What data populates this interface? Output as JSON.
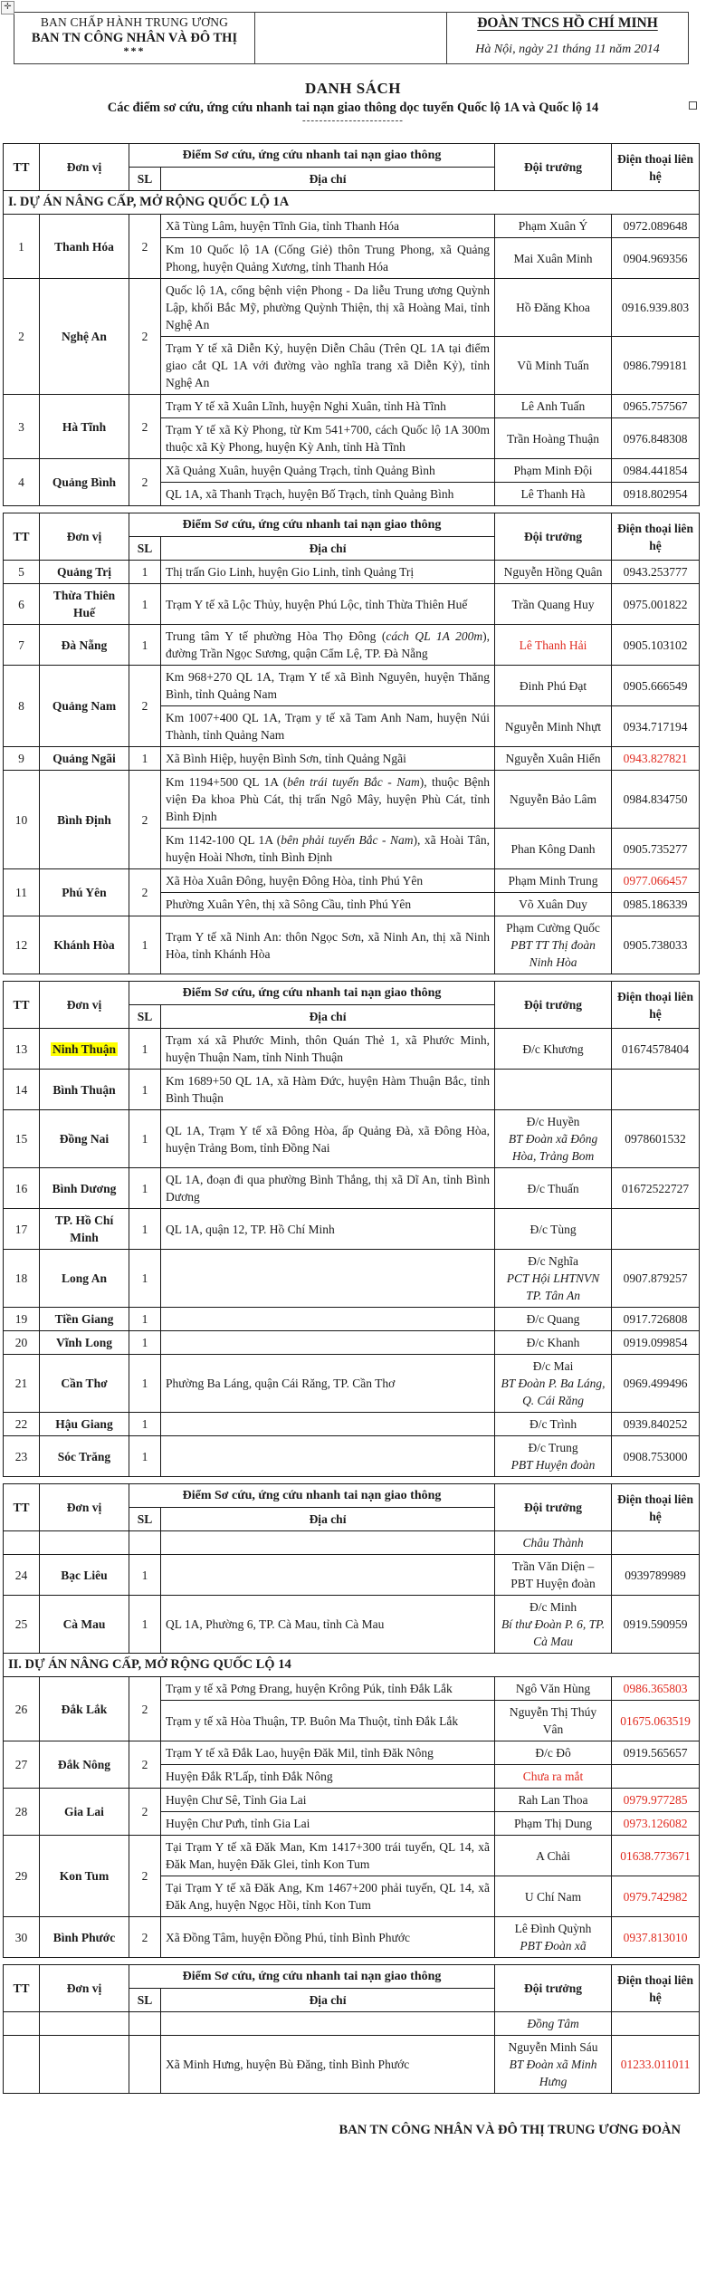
{
  "colors": {
    "red": "#e02a1f",
    "highlight": "#ffff00",
    "text": "#1b1b1b",
    "border": "#181818"
  },
  "letterhead": {
    "left_line1": "BAN CHẤP HÀNH TRUNG ƯƠNG",
    "left_line2": "BAN TN CÔNG NHÂN VÀ ĐÔ THỊ",
    "left_stars": "***",
    "right_org": "ĐOÀN TNCS HỒ CHÍ MINH",
    "right_date": "Hà Nội, ngày 21 tháng 11 năm 2014"
  },
  "title": "DANH SÁCH",
  "subtitle": "Các điểm sơ cứu, ứng cứu nhanh tai nạn giao thông dọc tuyến Quốc lộ 1A và Quốc lộ 14",
  "divider_dots": "------------------------",
  "table_header": {
    "tt": "TT",
    "unit": "Đơn vị",
    "group": "Điểm Sơ cứu, ứng cứu nhanh tai nạn giao thông",
    "sl": "SL",
    "address": "Địa chỉ",
    "leader": "Đội trưởng",
    "phone": "Điện thoại liên hệ"
  },
  "fragments": [
    {
      "rows": [
        {
          "type": "section",
          "label": "I. DỰ ÁN NÂNG CẤP, MỞ RỘNG QUỐC LỘ 1A"
        },
        {
          "type": "unit",
          "tt": "1",
          "unit": "Thanh Hóa",
          "sl": "2",
          "entries": [
            {
              "addr": "Xã Tùng Lâm, huyện Tĩnh Gia, tỉnh Thanh Hóa",
              "leader": [
                {
                  "t": "Phạm Xuân Ý"
                }
              ],
              "phone": "0972.089648"
            },
            {
              "addr": "Km 10 Quốc lộ 1A (Cống Giẻ) thôn Trung Phong, xã Quảng Phong, huyện Quảng Xương, tỉnh Thanh Hóa",
              "leader": [
                {
                  "t": "Mai Xuân Minh"
                }
              ],
              "phone": "0904.969356"
            }
          ]
        },
        {
          "type": "unit",
          "tt": "2",
          "unit": "Nghệ An",
          "sl": "2",
          "entries": [
            {
              "addr": "Quốc lộ 1A, cổng bệnh viện Phong - Da liễu Trung ương Quỳnh Lập, khối Bắc Mỹ, phường Quỳnh Thiện, thị xã Hoàng Mai, tỉnh Nghệ An",
              "leader": [
                {
                  "t": "Hồ Đăng Khoa"
                }
              ],
              "phone": "0916.939.803"
            },
            {
              "addr": "Trạm Y tế xã Diễn Kỷ, huyện Diễn Châu (Trên QL 1A tại điểm giao cắt QL 1A với đường vào nghĩa trang xã Diễn Kỷ), tỉnh Nghệ An",
              "leader": [
                {
                  "t": "Vũ Minh Tuấn"
                }
              ],
              "phone": "0986.799181"
            }
          ]
        },
        {
          "type": "unit",
          "tt": "3",
          "unit": "Hà Tĩnh",
          "sl": "2",
          "entries": [
            {
              "addr": "Trạm Y tế xã Xuân Lĩnh, huyện Nghi Xuân, tỉnh Hà Tĩnh",
              "leader": [
                {
                  "t": "Lê Anh Tuấn"
                }
              ],
              "phone": "0965.757567"
            },
            {
              "addr": "Trạm Y tế xã Kỳ Phong, từ Km 541+700, cách Quốc lộ 1A 300m thuộc xã Kỳ Phong, huyện Kỳ Anh, tỉnh Hà Tĩnh",
              "leader": [
                {
                  "t": "Trần Hoàng Thuận"
                }
              ],
              "phone": "0976.848308"
            }
          ]
        },
        {
          "type": "unit",
          "tt": "4",
          "unit": "Quảng Bình",
          "sl": "2",
          "entries": [
            {
              "addr": "Xã Quảng Xuân, huyện Quảng Trạch, tỉnh Quảng Bình",
              "leader": [
                {
                  "t": "Phạm Minh Đội"
                }
              ],
              "phone": "0984.441854"
            },
            {
              "addr": "QL 1A, xã Thanh Trạch, huyện Bố Trạch, tỉnh Quảng Bình",
              "leader": [
                {
                  "t": "Lê Thanh Hà"
                }
              ],
              "phone": "0918.802954"
            }
          ]
        }
      ]
    },
    {
      "rows": [
        {
          "type": "unit",
          "tt": "5",
          "unit": "Quảng Trị",
          "sl": "1",
          "entries": [
            {
              "addr": "Thị trấn Gio Linh, huyện Gio Linh, tỉnh Quảng Trị",
              "leader": [
                {
                  "t": "Nguyễn Hồng Quân"
                }
              ],
              "phone": "0943.253777"
            }
          ]
        },
        {
          "type": "unit",
          "tt": "6",
          "unit": "Thừa Thiên Huế",
          "sl": "1",
          "entries": [
            {
              "addr": "Trạm Y tế xã Lộc Thủy, huyện Phú Lộc, tỉnh Thừa Thiên Huế",
              "leader": [
                {
                  "t": "Trần Quang Huy"
                }
              ],
              "phone": "0975.001822"
            }
          ]
        },
        {
          "type": "unit",
          "tt": "7",
          "unit": "Đà Nẵng",
          "sl": "1",
          "entries": [
            {
              "addr": [
                {
                  "t": "Trung tâm Y tế phường Hòa Thọ Đông ("
                },
                {
                  "t": "cách QL 1A 200m",
                  "i": true
                },
                {
                  "t": "), đường Trần Ngọc Sương, quận Cẩm Lệ, TP. Đà Nẵng"
                }
              ],
              "leader": [
                {
                  "t": "Lê Thanh Hải",
                  "red": true
                }
              ],
              "phone": "0905.103102"
            }
          ]
        },
        {
          "type": "unit",
          "tt": "8",
          "unit": "Quảng Nam",
          "sl": "2",
          "entries": [
            {
              "addr": "Km 968+270 QL 1A, Trạm Y tế xã Bình Nguyên, huyện Thăng Bình, tỉnh Quảng Nam",
              "leader": [
                {
                  "t": "Đinh Phú Đạt"
                }
              ],
              "phone": "0905.666549"
            },
            {
              "addr": "Km 1007+400 QL 1A, Trạm y tế xã Tam Anh Nam, huyện Núi Thành, tỉnh Quảng Nam",
              "leader": [
                {
                  "t": "Nguyễn Minh Nhựt"
                }
              ],
              "phone": "0934.717194"
            }
          ]
        },
        {
          "type": "unit",
          "tt": "9",
          "unit": "Quảng Ngãi",
          "sl": "1",
          "entries": [
            {
              "addr": "Xã Bình Hiệp, huyện Bình Sơn, tỉnh Quảng Ngãi",
              "leader": [
                {
                  "t": "Nguyễn Xuân Hiển"
                }
              ],
              "phone": "0943.827821",
              "phoneRed": true
            }
          ]
        },
        {
          "type": "unit",
          "tt": "10",
          "unit": "Bình Định",
          "sl": "2",
          "entries": [
            {
              "addr": [
                {
                  "t": "Km 1194+500 QL 1A ("
                },
                {
                  "t": "bên trái tuyến Bắc - Nam",
                  "i": true
                },
                {
                  "t": "), thuộc Bệnh viện Đa khoa Phù Cát, thị trấn Ngô Mây, huyện Phù Cát, tỉnh Bình Định"
                }
              ],
              "leader": [
                {
                  "t": "Nguyễn Bảo Lâm"
                }
              ],
              "phone": "0984.834750"
            },
            {
              "addr": [
                {
                  "t": "Km 1142-100 QL 1A ("
                },
                {
                  "t": "bên phải tuyến Bắc - Nam",
                  "i": true
                },
                {
                  "t": "), xã Hoài Tân, huyện Hoài Nhơn, tỉnh Bình Định"
                }
              ],
              "leader": [
                {
                  "t": "Phan Kông Danh"
                }
              ],
              "phone": "0905.735277"
            }
          ]
        },
        {
          "type": "unit",
          "tt": "11",
          "unit": "Phú Yên",
          "sl": "2",
          "entries": [
            {
              "addr": "Xã Hòa Xuân Đông, huyện Đông Hòa, tỉnh Phú Yên",
              "leader": [
                {
                  "t": "Phạm Minh Trung"
                }
              ],
              "phone": "0977.066457",
              "phoneRed": true
            },
            {
              "addr": "Phường Xuân Yên, thị xã Sông Cầu, tỉnh Phú Yên",
              "leader": [
                {
                  "t": "Võ Xuân Duy"
                }
              ],
              "phone": "0985.186339"
            }
          ]
        },
        {
          "type": "unit",
          "tt": "12",
          "unit": "Khánh Hòa",
          "sl": "1",
          "entries": [
            {
              "addr": "Trạm Y tế xã Ninh An: thôn Ngọc Sơn, xã Ninh An, thị xã Ninh Hòa, tỉnh Khánh Hòa",
              "leader": [
                {
                  "t": "Phạm Cường Quốc"
                },
                {
                  "t": "PBT TT Thị đoàn Ninh Hòa",
                  "i": true
                }
              ],
              "phone": "0905.738033"
            }
          ]
        }
      ]
    },
    {
      "rows": [
        {
          "type": "unit",
          "tt": "13",
          "unit": "Ninh Thuận",
          "hl": true,
          "sl": "1",
          "entries": [
            {
              "addr": "Trạm xá xã Phước Minh, thôn Quán Thẻ 1, xã Phước Minh, huyện Thuận Nam, tỉnh Ninh Thuận",
              "leader": [
                {
                  "t": "Đ/c Khương"
                }
              ],
              "phone": "01674578404"
            }
          ]
        },
        {
          "type": "unit",
          "tt": "14",
          "unit": "Bình Thuận",
          "sl": "1",
          "entries": [
            {
              "addr": "Km 1689+50 QL 1A, xã Hàm Đức, huyện Hàm Thuận Bắc, tỉnh Bình Thuận",
              "leader": [],
              "phone": ""
            }
          ]
        },
        {
          "type": "unit",
          "tt": "15",
          "unit": "Đồng Nai",
          "sl": "1",
          "entries": [
            {
              "addr": "QL 1A, Trạm Y tế xã Đông Hòa, ấp Quảng Đà, xã Đông Hòa, huyện Trảng Bom, tỉnh Đồng Nai",
              "leader": [
                {
                  "t": "Đ/c Huyền"
                },
                {
                  "t": "BT Đoàn xã Đông Hòa, Trảng Bom",
                  "i": true
                }
              ],
              "phone": "0978601532"
            }
          ]
        },
        {
          "type": "unit",
          "tt": "16",
          "unit": "Bình Dương",
          "sl": "1",
          "entries": [
            {
              "addr": "QL 1A, đoạn đi qua phường Bình Thắng, thị xã Dĩ An, tỉnh Bình Dương",
              "leader": [
                {
                  "t": "Đ/c Thuấn"
                }
              ],
              "phone": "01672522727"
            }
          ]
        },
        {
          "type": "unit",
          "tt": "17",
          "unit": "TP. Hồ Chí Minh",
          "sl": "1",
          "entries": [
            {
              "addr": "QL 1A, quận 12, TP. Hồ Chí Minh",
              "leader": [
                {
                  "t": "Đ/c Tùng"
                }
              ],
              "phone": ""
            }
          ]
        },
        {
          "type": "unit",
          "tt": "18",
          "unit": "Long An",
          "sl": "1",
          "entries": [
            {
              "addr": "",
              "leader": [
                {
                  "t": "Đ/c Nghĩa"
                },
                {
                  "t": "PCT Hội LHTNVN TP. Tân An",
                  "i": true
                }
              ],
              "phone": "0907.879257"
            }
          ]
        },
        {
          "type": "unit",
          "tt": "19",
          "unit": "Tiền Giang",
          "sl": "1",
          "entries": [
            {
              "addr": "",
              "leader": [
                {
                  "t": "Đ/c Quang"
                }
              ],
              "phone": "0917.726808"
            }
          ]
        },
        {
          "type": "unit",
          "tt": "20",
          "unit": "Vĩnh Long",
          "sl": "1",
          "entries": [
            {
              "addr": "",
              "leader": [
                {
                  "t": "Đ/c Khanh"
                }
              ],
              "phone": "0919.099854"
            }
          ]
        },
        {
          "type": "unit",
          "tt": "21",
          "unit": "Cần Thơ",
          "sl": "1",
          "entries": [
            {
              "addr": "Phường Ba Láng, quận Cái Răng, TP. Cần Thơ",
              "leader": [
                {
                  "t": "Đ/c Mai"
                },
                {
                  "t": "BT Đoàn P. Ba Láng, Q. Cái Răng",
                  "i": true
                }
              ],
              "phone": "0969.499496"
            }
          ]
        },
        {
          "type": "unit",
          "tt": "22",
          "unit": "Hậu Giang",
          "sl": "1",
          "entries": [
            {
              "addr": "",
              "leader": [
                {
                  "t": "Đ/c Trình"
                }
              ],
              "phone": "0939.840252"
            }
          ]
        },
        {
          "type": "unit",
          "tt": "23",
          "unit": "Sóc Trăng",
          "sl": "1",
          "entries": [
            {
              "addr": "",
              "leader": [
                {
                  "t": "Đ/c Trung"
                },
                {
                  "t": "PBT Huyện đoàn",
                  "i": true
                }
              ],
              "phone": "0908.753000"
            }
          ]
        }
      ]
    },
    {
      "rows": [
        {
          "type": "unit",
          "tt": "",
          "unit": "",
          "sl": "",
          "thin": true,
          "entries": [
            {
              "addr": "",
              "leader": [
                {
                  "t": "Châu Thành",
                  "i": true
                }
              ],
              "phone": ""
            }
          ]
        },
        {
          "type": "unit",
          "tt": "24",
          "unit": "Bạc Liêu",
          "sl": "1",
          "entries": [
            {
              "addr": "",
              "leader": [
                {
                  "t": "Trần Văn Diện –"
                },
                {
                  "t": "PBT Huyện đoàn"
                }
              ],
              "phone": "0939789989"
            }
          ]
        },
        {
          "type": "unit",
          "tt": "25",
          "unit": "Cà Mau",
          "sl": "1",
          "entries": [
            {
              "addr": "QL 1A, Phường 6, TP. Cà Mau, tỉnh Cà Mau",
              "leader": [
                {
                  "t": "Đ/c Minh"
                },
                {
                  "t": "Bí thư Đoàn P. 6, TP. Cà Mau",
                  "i": true
                }
              ],
              "phone": "0919.590959"
            }
          ]
        },
        {
          "type": "section",
          "label": "II. DỰ ÁN NÂNG CẤP, MỞ RỘNG QUỐC LỘ 14"
        },
        {
          "type": "unit",
          "tt": "26",
          "unit": "Đắk Lắk",
          "sl": "2",
          "entries": [
            {
              "addr": "Trạm y tế xã Pơng Đrang, huyện Krông Púk, tỉnh Đắk Lắk",
              "leader": [
                {
                  "t": "Ngô Văn Hùng"
                }
              ],
              "phone": "0986.365803",
              "phoneRed": true
            },
            {
              "addr": "Trạm y tế xã Hòa Thuận, TP. Buôn Ma Thuột, tỉnh Đắk Lắk",
              "leader": [
                {
                  "t": "Nguyễn Thị Thúy Vân"
                }
              ],
              "phone": "01675.063519",
              "phoneRed": true
            }
          ]
        },
        {
          "type": "unit",
          "tt": "27",
          "unit": "Đắk Nông",
          "sl": "2",
          "entries": [
            {
              "addr": "Trạm Y tế xã Đắk Lao, huyện Đăk Mil, tỉnh Đăk Nông",
              "leader": [
                {
                  "t": "Đ/c Đô"
                }
              ],
              "phone": "0919.565657"
            },
            {
              "addr": "Huyện Đắk R'Lấp, tỉnh Đắk Nông",
              "leader": [
                {
                  "t": "Chưa ra mắt",
                  "red": true
                }
              ],
              "phone": ""
            }
          ]
        },
        {
          "type": "unit",
          "tt": "28",
          "unit": "Gia Lai",
          "sl": "2",
          "entries": [
            {
              "addr": "Huyện Chư Sê, Tỉnh Gia Lai",
              "leader": [
                {
                  "t": "Rah Lan Thoa"
                }
              ],
              "phone": "0979.977285",
              "phoneRed": true
            },
            {
              "addr": "Huyện Chư Pưh, tỉnh Gia Lai",
              "leader": [
                {
                  "t": "Phạm Thị Dung"
                }
              ],
              "phone": "0973.126082",
              "phoneRed": true
            }
          ]
        },
        {
          "type": "unit",
          "tt": "29",
          "unit": "Kon Tum",
          "sl": "2",
          "entries": [
            {
              "addr": "Tại Trạm Y tế xã Đăk Man, Km 1417+300 trái tuyến, QL 14, xã Đăk Man, huyện Đăk Glei, tỉnh Kon Tum",
              "leader": [
                {
                  "t": "A Chải"
                }
              ],
              "phone": "01638.773671",
              "phoneRed": true
            },
            {
              "addr": "Tại Trạm Y tế xã Đăk Ang, Km 1467+200 phải tuyến, QL 14, xã Đăk Ang, huyện Ngọc Hồi, tỉnh Kon Tum",
              "leader": [
                {
                  "t": "U Chí Nam"
                }
              ],
              "phone": "0979.742982",
              "phoneRed": true
            }
          ]
        },
        {
          "type": "unit",
          "tt": "30",
          "unit": "Bình Phước",
          "sl": "2",
          "entries": [
            {
              "addr": "Xã Đồng Tâm, huyện Đồng Phú, tỉnh Bình Phước",
              "leader": [
                {
                  "t": "Lê Đình Quỳnh"
                },
                {
                  "t": "PBT Đoàn xã",
                  "i": true
                }
              ],
              "phone": "0937.813010",
              "phoneRed": true
            }
          ]
        }
      ]
    },
    {
      "rows": [
        {
          "type": "unit",
          "tt": "",
          "unit": "",
          "sl": "",
          "thin": true,
          "entries": [
            {
              "addr": "",
              "leader": [
                {
                  "t": "Đồng Tâm",
                  "i": true
                }
              ],
              "phone": ""
            }
          ]
        },
        {
          "type": "unit",
          "tt": "",
          "unit": "",
          "sl": "",
          "entries": [
            {
              "addr": "Xã Minh Hưng, huyện Bù Đăng, tỉnh Bình Phước",
              "leader": [
                {
                  "t": "Nguyễn Minh Sáu"
                },
                {
                  "t": "BT Đoàn xã Minh Hưng",
                  "i": true
                }
              ],
              "phone": "01233.011011",
              "phoneRed": true
            }
          ]
        }
      ]
    }
  ],
  "footer": "BAN TN CÔNG NHÂN VÀ ĐÔ THỊ TRUNG ƯƠNG ĐOÀN"
}
